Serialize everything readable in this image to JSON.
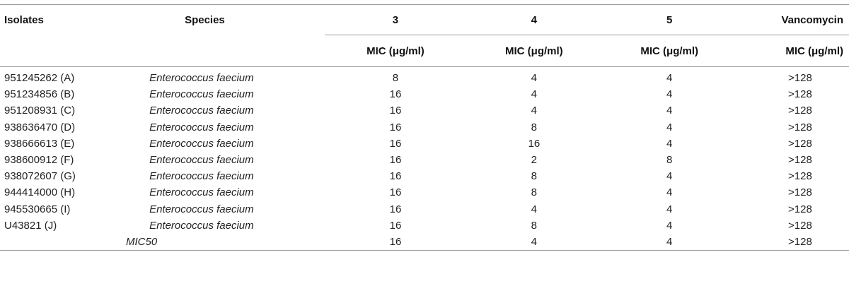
{
  "header": {
    "isolates": "Isolates",
    "species": "Species",
    "col3": "3",
    "col4": "4",
    "col5": "5",
    "vancomycin": "Vancomycin",
    "mic_label": "MIC (μg/ml)"
  },
  "rows": [
    {
      "isolate": "951245262 (A)",
      "species": "Enterococcus faecium",
      "v3": "8",
      "v4": "4",
      "v5": "4",
      "vanc": ">128"
    },
    {
      "isolate": "951234856 (B)",
      "species": "Enterococcus faecium",
      "v3": "16",
      "v4": "4",
      "v5": "4",
      "vanc": ">128"
    },
    {
      "isolate": "951208931 (C)",
      "species": "Enterococcus faecium",
      "v3": "16",
      "v4": "4",
      "v5": "4",
      "vanc": ">128"
    },
    {
      "isolate": "938636470 (D)",
      "species": "Enterococcus faecium",
      "v3": "16",
      "v4": "8",
      "v5": "4",
      "vanc": ">128"
    },
    {
      "isolate": "938666613 (E)",
      "species": "Enterococcus faecium",
      "v3": "16",
      "v4": "16",
      "v5": "4",
      "vanc": ">128"
    },
    {
      "isolate": "938600912 (F)",
      "species": "Enterococcus faecium",
      "v3": "16",
      "v4": "2",
      "v5": "8",
      "vanc": ">128"
    },
    {
      "isolate": "938072607 (G)",
      "species": "Enterococcus faecium",
      "v3": "16",
      "v4": "8",
      "v5": "4",
      "vanc": ">128"
    },
    {
      "isolate": "944414000 (H)",
      "species": "Enterococcus faecium",
      "v3": "16",
      "v4": "8",
      "v5": "4",
      "vanc": ">128"
    },
    {
      "isolate": "945530665 (I)",
      "species": "Enterococcus faecium",
      "v3": "16",
      "v4": "4",
      "v5": "4",
      "vanc": ">128"
    },
    {
      "isolate": "U43821 (J)",
      "species": "Enterococcus faecium",
      "v3": "16",
      "v4": "8",
      "v5": "4",
      "vanc": ">128"
    }
  ],
  "summary": {
    "label": "MIC50",
    "v3": "16",
    "v4": "4",
    "v5": "4",
    "vanc": ">128"
  }
}
